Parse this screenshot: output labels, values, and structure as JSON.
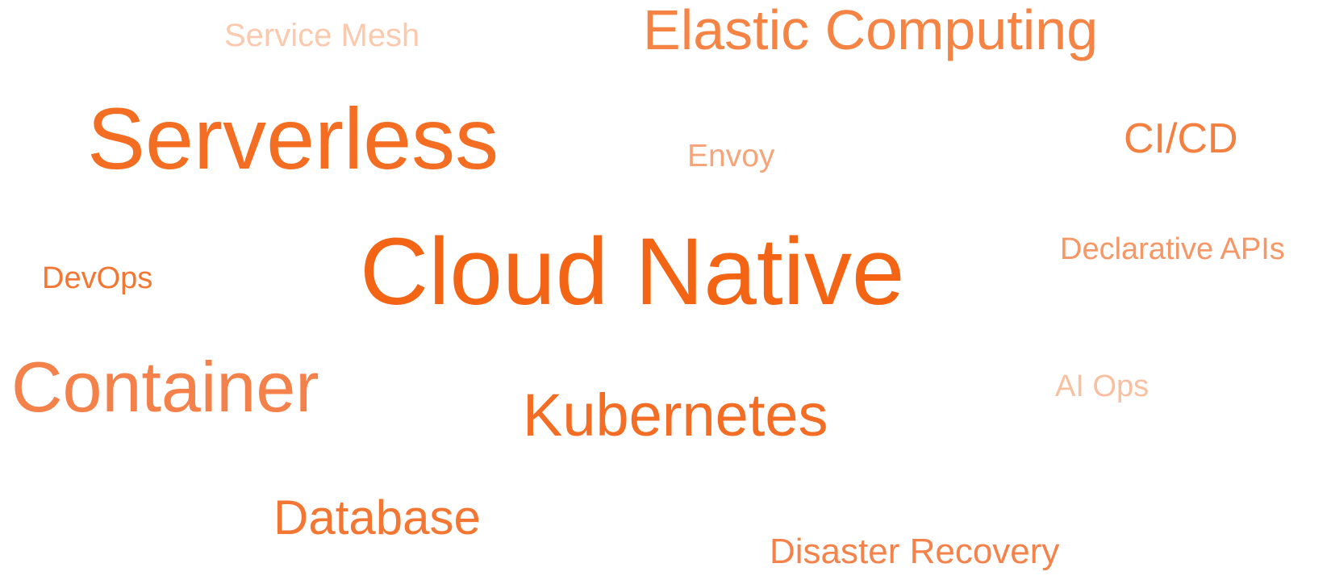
{
  "words": [
    {
      "id": "service-mesh",
      "text": "Service Mesh",
      "color": "#FBC9AE"
    },
    {
      "id": "elastic",
      "text": "Elastic Computing",
      "color": "#F58444"
    },
    {
      "id": "serverless",
      "text": "Serverless",
      "color": "#F36E22"
    },
    {
      "id": "envoy",
      "text": "Envoy",
      "color": "#F6A57A"
    },
    {
      "id": "cicd",
      "text": "CI/CD",
      "color": "#F38040"
    },
    {
      "id": "devops",
      "text": "DevOps",
      "color": "#F37733"
    },
    {
      "id": "cloud-native",
      "text": "Cloud Native",
      "color": "#F36515"
    },
    {
      "id": "declarative",
      "text": "Declarative APIs",
      "color": "#F59766"
    },
    {
      "id": "container",
      "text": "Container",
      "color": "#F4804A"
    },
    {
      "id": "ai-ops",
      "text": "AI Ops",
      "color": "#F8C0A0"
    },
    {
      "id": "kubernetes",
      "text": "Kubernetes",
      "color": "#F36D24"
    },
    {
      "id": "database",
      "text": "Database",
      "color": "#F37733"
    },
    {
      "id": "disaster",
      "text": "Disaster Recovery",
      "color": "#F5824A"
    }
  ]
}
